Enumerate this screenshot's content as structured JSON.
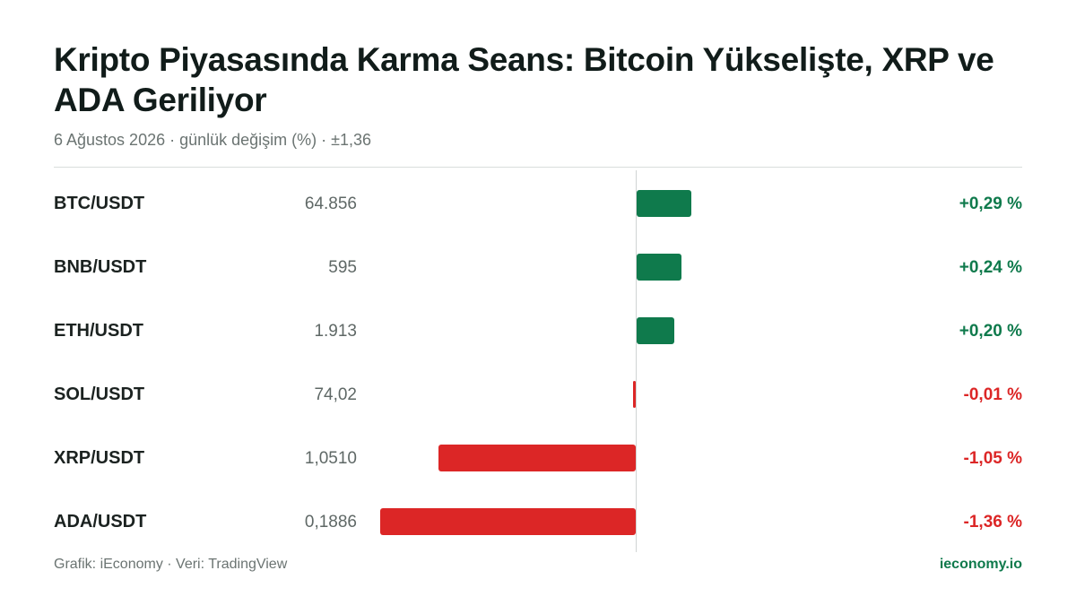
{
  "title": "Kripto Piyasasında Karma Seans: Bitcoin Yükselişte, XRP ve ADA Geriliyor",
  "subtitle": "6 Ağustos 2026 · günlük değişim (%) · ±1,36",
  "footer": {
    "source": "Grafik: iEconomy · Veri: TradingView",
    "brand": "ieconomy.io"
  },
  "colors": {
    "positive": "#0f7a4c",
    "negative": "#dc2626"
  },
  "chart_data": {
    "type": "bar",
    "orientation": "horizontal",
    "title": "Kripto Piyasasında Karma Seans: Bitcoin Yükselişte, XRP ve ADA Geriliyor",
    "xlim": [
      -1.36,
      1.36
    ],
    "grid": false,
    "categories": [
      "BTC/USDT",
      "BNB/USDT",
      "ETH/USDT",
      "SOL/USDT",
      "XRP/USDT",
      "ADA/USDT"
    ],
    "prices": [
      "64.856",
      "595",
      "1.913",
      "74,02",
      "1,0510",
      "0,1886"
    ],
    "values": [
      0.29,
      0.24,
      0.2,
      -0.01,
      -1.05,
      -1.36
    ],
    "labels": [
      "+0,29 %",
      "+0,24 %",
      "+0,20 %",
      "-0,01 %",
      "-1,05 %",
      "-1,36 %"
    ]
  }
}
